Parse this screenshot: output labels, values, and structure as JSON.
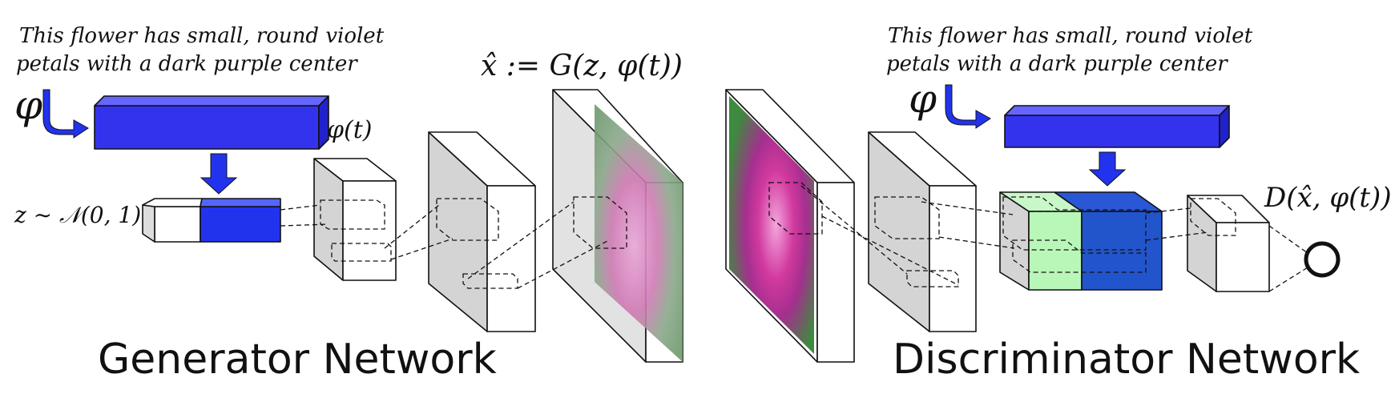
{
  "generator": {
    "caption_line1": "This flower has small, round violet",
    "caption_line2": "petals with a dark purple center",
    "phi_symbol": "φ",
    "embedding_label": "φ(t)",
    "noise_label": "z ∼ 𝒩(0, 1)",
    "output_label": "x̂ := G(z, φ(t))",
    "section_label": "Generator Network"
  },
  "discriminator": {
    "caption_line1": "This flower has small, round violet",
    "caption_line2": "petals with a dark purple center",
    "phi_symbol": "φ",
    "score_label": "D(x̂, φ(t))",
    "section_label": "Discriminator Network"
  },
  "colors": {
    "embedding_blue": "#3333ee",
    "feature_green": "#b8f7b8",
    "conv_gray": "#d4d4d4",
    "concat_blue": "#2255cc"
  }
}
